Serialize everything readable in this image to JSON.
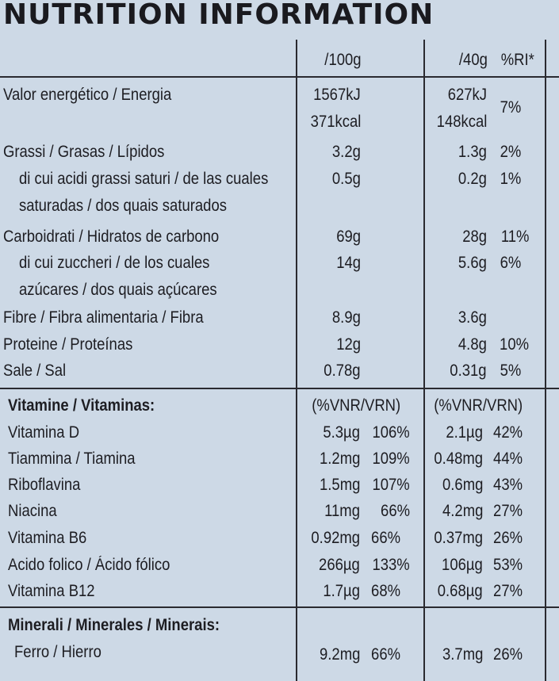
{
  "title": "NUTRITION INFORMATION",
  "header": {
    "col100": "/100g",
    "col40": "/40g",
    "ri": "%RI*"
  },
  "energy": {
    "label": "Valor energético / Energia",
    "kj100": "1567kJ",
    "kcal100": "371kcal",
    "kj40": "627kJ",
    "kcal40": "148kcal",
    "ri": "7%"
  },
  "rows": [
    {
      "label": "Grassi / Grasas / Lípidos",
      "v100": "3.2g",
      "v40": "1.3g",
      "ri": "2%"
    },
    {
      "label": "di cui acidi grassi saturi / de las cuales",
      "label2": "saturadas / dos quais saturados",
      "v100": "0.5g",
      "v40": "0.2g",
      "ri": "1%"
    },
    {
      "label": "Carboidrati / Hidratos de carbono",
      "v100": "69g",
      "v40": "28g",
      "ri": "11%"
    },
    {
      "label": "di cui zuccheri / de los cuales",
      "label2": "azúcares / dos quais açúcares",
      "v100": "14g",
      "v40": "5.6g",
      "ri": "6%"
    },
    {
      "label": "Fibre / Fibra alimentaria / Fibra",
      "v100": "8.9g",
      "v40": "3.6g",
      "ri": ""
    },
    {
      "label": "Proteine / Proteínas",
      "v100": "12g",
      "v40": "4.8g",
      "ri": "10%"
    },
    {
      "label": "Sale / Sal",
      "v100": "0.78g",
      "v40": "0.31g",
      "ri": "5%"
    }
  ],
  "vitamins": {
    "heading": "Vitamine / Vitaminas:",
    "vnr100": "(%VNR/VRN)",
    "vnr40": "(%VNR/VRN)",
    "items": [
      {
        "label": "Vitamina D",
        "v100": "5.3µg",
        "p100": "106%",
        "v40": "2.1µg",
        "p40": "42%"
      },
      {
        "label": "Tiammina / Tiamina",
        "v100": "1.2mg",
        "p100": "109%",
        "v40": "0.48mg",
        "p40": "44%"
      },
      {
        "label": "Riboflavina",
        "v100": "1.5mg",
        "p100": "107%",
        "v40": "0.6mg",
        "p40": "43%"
      },
      {
        "label": "Niacina",
        "v100": "11mg",
        "p100": "66%",
        "v40": "4.2mg",
        "p40": "27%"
      },
      {
        "label": "Vitamina B6",
        "v100": "0.92mg",
        "p100": "66%",
        "v40": "0.37mg",
        "p40": "26%"
      },
      {
        "label": "Acido folico / Ácido fólico",
        "v100": "266µg",
        "p100": "133%",
        "v40": "106µg",
        "p40": "53%"
      },
      {
        "label": "Vitamina B12",
        "v100": "1.7µg",
        "p100": "68%",
        "v40": "0.68µg",
        "p40": "27%"
      }
    ]
  },
  "minerals": {
    "heading": "Minerali / Minerales / Minerais:",
    "items": [
      {
        "label": "Ferro / Hierro",
        "v100": "9.2mg",
        "p100": "66%",
        "v40": "3.7mg",
        "p40": "26%"
      }
    ]
  }
}
